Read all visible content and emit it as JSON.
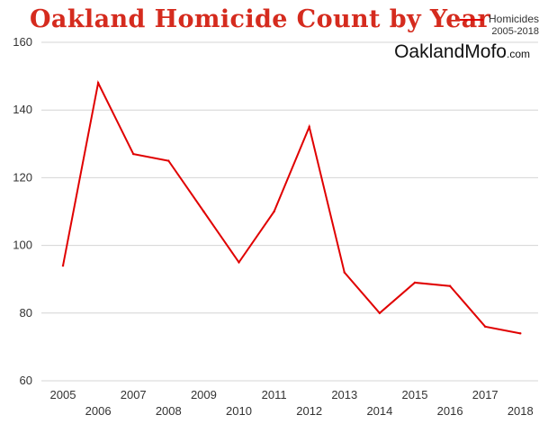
{
  "chart_data": {
    "type": "line",
    "title": "Oakland Homicide Count by Year",
    "xlabel": "",
    "ylabel": "",
    "x": [
      2005,
      2006,
      2007,
      2008,
      2009,
      2010,
      2011,
      2012,
      2013,
      2014,
      2015,
      2016,
      2017,
      2018
    ],
    "series": [
      {
        "name": "Homicides",
        "subtitle": "2005-2018",
        "color": "#e00000",
        "values": [
          94,
          148,
          127,
          125,
          110,
          95,
          110,
          135,
          92,
          80,
          89,
          88,
          76,
          74
        ]
      }
    ],
    "ylim": [
      60,
      160
    ],
    "yticks": [
      60,
      80,
      100,
      120,
      140,
      160
    ],
    "grid": true,
    "legend_position": "top-right"
  },
  "title_color": "#d52b1e",
  "brand": {
    "main": "OaklandMofo",
    "tld": ".com"
  }
}
